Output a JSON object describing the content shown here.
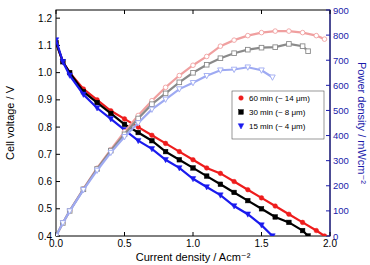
{
  "chart_data": {
    "type": "line",
    "x_label": "Current density / Acm⁻²",
    "y_label": "Cell voltage / V",
    "y2_label": "Power density / mWcm⁻²",
    "xlim": [
      0,
      2.0
    ],
    "xticks": [
      {
        "value": 0,
        "label": "0.0"
      },
      0.5,
      {
        "value": 1,
        "label": "1.0"
      },
      1.5,
      {
        "value": 2,
        "label": "2.0"
      }
    ],
    "ylim": [
      0.4,
      1.23
    ],
    "yticks": [
      0.4,
      0.5,
      0.6,
      0.7,
      0.8,
      0.9,
      {
        "value": 1,
        "label": "1.0"
      },
      1.1,
      1.2
    ],
    "y2lim": [
      0,
      900
    ],
    "y2ticks": [
      0,
      100,
      200,
      300,
      400,
      500,
      600,
      700,
      800,
      900
    ],
    "grid": false,
    "legend": "right",
    "series": [
      {
        "name": "60 min (~ 14 μm)",
        "color": "#ee1c1c",
        "marker": "circle",
        "line_style": "solid",
        "x": [
          0,
          0.05,
          0.1,
          0.2,
          0.3,
          0.4,
          0.5,
          0.6,
          0.7,
          0.8,
          0.9,
          1.0,
          1.1,
          1.2,
          1.3,
          1.4,
          1.5,
          1.6,
          1.7,
          1.8,
          1.9,
          1.96
        ],
        "values": [
          1.11,
          1.04,
          1.0,
          0.94,
          0.9,
          0.86,
          0.83,
          0.8,
          0.77,
          0.74,
          0.71,
          0.68,
          0.65,
          0.63,
          0.6,
          0.57,
          0.54,
          0.51,
          0.48,
          0.45,
          0.42,
          0.4
        ]
      },
      {
        "name": "30 min (~ 8 μm)",
        "color": "#000000",
        "marker": "square",
        "line_style": "solid",
        "x": [
          0,
          0.05,
          0.1,
          0.2,
          0.3,
          0.4,
          0.5,
          0.6,
          0.7,
          0.8,
          0.9,
          1.0,
          1.1,
          1.2,
          1.3,
          1.4,
          1.5,
          1.6,
          1.7,
          1.8,
          1.84
        ],
        "values": [
          1.11,
          1.04,
          1.0,
          0.93,
          0.89,
          0.85,
          0.81,
          0.78,
          0.75,
          0.71,
          0.68,
          0.65,
          0.62,
          0.59,
          0.56,
          0.53,
          0.5,
          0.47,
          0.45,
          0.42,
          0.4
        ]
      },
      {
        "name": "15 min (~ 4 μm)",
        "color": "#1a1aee",
        "marker": "triangle-down",
        "line_style": "solid",
        "x": [
          0,
          0.05,
          0.1,
          0.2,
          0.3,
          0.4,
          0.5,
          0.6,
          0.7,
          0.8,
          0.9,
          1.0,
          1.1,
          1.2,
          1.3,
          1.4,
          1.5,
          1.58
        ],
        "values": [
          1.12,
          1.04,
          0.99,
          0.92,
          0.87,
          0.83,
          0.79,
          0.75,
          0.72,
          0.68,
          0.65,
          0.61,
          0.58,
          0.55,
          0.51,
          0.48,
          0.44,
          0.4
        ]
      },
      {
        "axis": "y2",
        "color": "#f0a0a0",
        "marker": "open-circle",
        "line_style": "solid",
        "x": [
          0,
          0.05,
          0.1,
          0.2,
          0.3,
          0.4,
          0.5,
          0.6,
          0.7,
          0.8,
          0.9,
          1.0,
          1.1,
          1.2,
          1.3,
          1.4,
          1.5,
          1.6,
          1.7,
          1.8,
          1.9,
          1.96
        ],
        "values": [
          0,
          52,
          100,
          188,
          270,
          344,
          415,
          480,
          539,
          592,
          639,
          680,
          715,
          756,
          780,
          798,
          810,
          816,
          816,
          810,
          798,
          784
        ]
      },
      {
        "axis": "y2",
        "color": "#8a8a8a",
        "marker": "open-square",
        "line_style": "solid",
        "x": [
          0,
          0.05,
          0.1,
          0.2,
          0.3,
          0.4,
          0.5,
          0.6,
          0.7,
          0.8,
          0.9,
          1.0,
          1.1,
          1.2,
          1.3,
          1.4,
          1.5,
          1.6,
          1.7,
          1.8,
          1.84
        ],
        "values": [
          0,
          52,
          100,
          186,
          267,
          340,
          405,
          468,
          525,
          568,
          612,
          650,
          682,
          708,
          728,
          742,
          750,
          752,
          765,
          756,
          736
        ]
      },
      {
        "axis": "y2",
        "color": "#9eaaf2",
        "marker": "open-triangle-down",
        "line_style": "solid",
        "x": [
          0,
          0.05,
          0.1,
          0.2,
          0.3,
          0.4,
          0.5,
          0.6,
          0.7,
          0.8,
          0.9,
          1.0,
          1.1,
          1.2,
          1.3,
          1.4,
          1.5,
          1.58
        ],
        "values": [
          0,
          52,
          99,
          184,
          261,
          332,
          395,
          450,
          504,
          544,
          585,
          610,
          638,
          660,
          663,
          672,
          660,
          632
        ]
      }
    ]
  }
}
